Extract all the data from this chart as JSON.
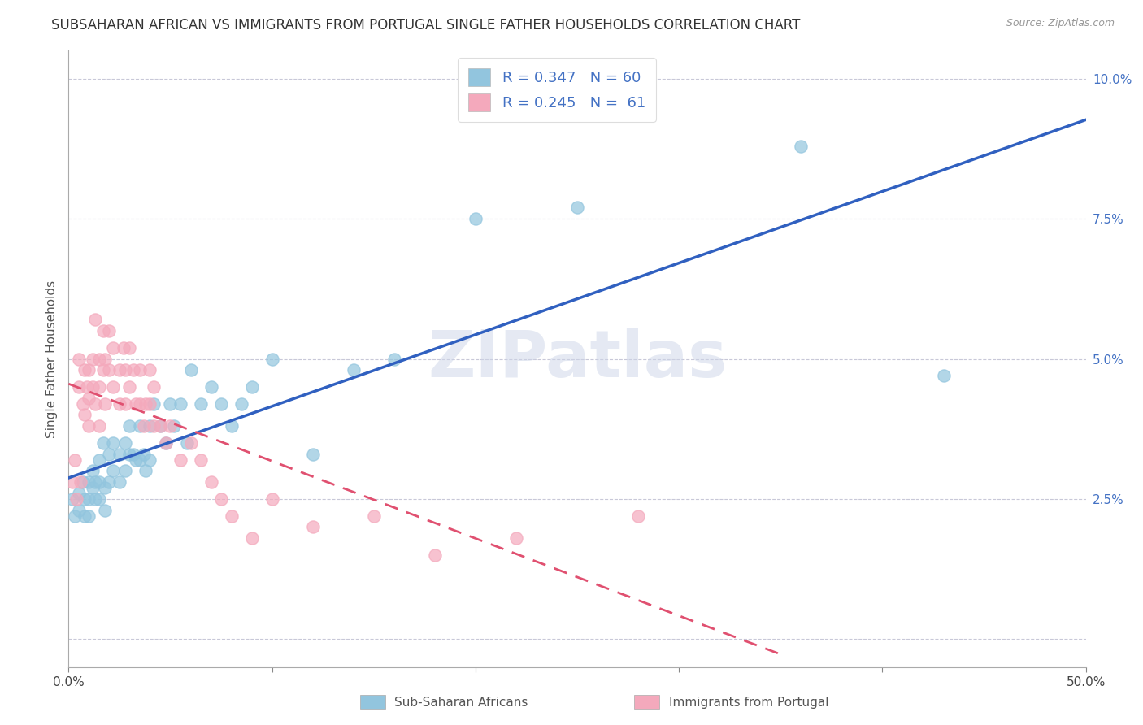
{
  "title": "SUBSAHARAN AFRICAN VS IMMIGRANTS FROM PORTUGAL SINGLE FATHER HOUSEHOLDS CORRELATION CHART",
  "source": "Source: ZipAtlas.com",
  "ylabel": "Single Father Households",
  "xlim": [
    0,
    0.5
  ],
  "ylim": [
    -0.005,
    0.105
  ],
  "xticks": [
    0.0,
    0.1,
    0.2,
    0.3,
    0.4,
    0.5
  ],
  "yticks": [
    0.0,
    0.025,
    0.05,
    0.075,
    0.1
  ],
  "xtick_labels_show": [
    "0.0%",
    "",
    "",
    "",
    "",
    "50.0%"
  ],
  "ytick_labels_show": [
    "",
    "2.5%",
    "5.0%",
    "7.5%",
    "10.0%"
  ],
  "watermark": "ZIPatlas",
  "blue_R": 0.347,
  "blue_N": 60,
  "pink_R": 0.245,
  "pink_N": 61,
  "blue_color": "#92c5de",
  "pink_color": "#f4a9bc",
  "blue_line_color": "#3060c0",
  "pink_line_color": "#e05070",
  "legend_label_blue": "Sub-Saharan Africans",
  "legend_label_pink": "Immigrants from Portugal",
  "blue_scatter_x": [
    0.002,
    0.003,
    0.005,
    0.005,
    0.007,
    0.008,
    0.008,
    0.01,
    0.01,
    0.01,
    0.012,
    0.012,
    0.013,
    0.013,
    0.015,
    0.015,
    0.015,
    0.017,
    0.018,
    0.018,
    0.02,
    0.02,
    0.022,
    0.022,
    0.025,
    0.025,
    0.028,
    0.028,
    0.03,
    0.03,
    0.032,
    0.033,
    0.035,
    0.035,
    0.037,
    0.038,
    0.04,
    0.04,
    0.042,
    0.045,
    0.048,
    0.05,
    0.052,
    0.055,
    0.058,
    0.06,
    0.065,
    0.07,
    0.075,
    0.08,
    0.085,
    0.09,
    0.1,
    0.12,
    0.14,
    0.16,
    0.2,
    0.25,
    0.36,
    0.43
  ],
  "blue_scatter_y": [
    0.025,
    0.022,
    0.026,
    0.023,
    0.028,
    0.025,
    0.022,
    0.028,
    0.025,
    0.022,
    0.03,
    0.027,
    0.025,
    0.028,
    0.032,
    0.028,
    0.025,
    0.035,
    0.027,
    0.023,
    0.033,
    0.028,
    0.035,
    0.03,
    0.033,
    0.028,
    0.035,
    0.03,
    0.038,
    0.033,
    0.033,
    0.032,
    0.038,
    0.032,
    0.033,
    0.03,
    0.038,
    0.032,
    0.042,
    0.038,
    0.035,
    0.042,
    0.038,
    0.042,
    0.035,
    0.048,
    0.042,
    0.045,
    0.042,
    0.038,
    0.042,
    0.045,
    0.05,
    0.033,
    0.048,
    0.05,
    0.075,
    0.077,
    0.088,
    0.047
  ],
  "pink_scatter_x": [
    0.002,
    0.003,
    0.004,
    0.005,
    0.005,
    0.006,
    0.007,
    0.008,
    0.008,
    0.009,
    0.01,
    0.01,
    0.01,
    0.012,
    0.012,
    0.013,
    0.013,
    0.015,
    0.015,
    0.015,
    0.017,
    0.017,
    0.018,
    0.018,
    0.02,
    0.02,
    0.022,
    0.022,
    0.025,
    0.025,
    0.027,
    0.028,
    0.028,
    0.03,
    0.03,
    0.032,
    0.033,
    0.035,
    0.035,
    0.037,
    0.038,
    0.04,
    0.04,
    0.042,
    0.042,
    0.045,
    0.048,
    0.05,
    0.055,
    0.06,
    0.065,
    0.07,
    0.075,
    0.08,
    0.09,
    0.1,
    0.12,
    0.15,
    0.18,
    0.22,
    0.28
  ],
  "pink_scatter_y": [
    0.028,
    0.032,
    0.025,
    0.05,
    0.045,
    0.028,
    0.042,
    0.048,
    0.04,
    0.045,
    0.048,
    0.043,
    0.038,
    0.05,
    0.045,
    0.057,
    0.042,
    0.05,
    0.045,
    0.038,
    0.055,
    0.048,
    0.05,
    0.042,
    0.055,
    0.048,
    0.052,
    0.045,
    0.048,
    0.042,
    0.052,
    0.048,
    0.042,
    0.052,
    0.045,
    0.048,
    0.042,
    0.048,
    0.042,
    0.038,
    0.042,
    0.048,
    0.042,
    0.045,
    0.038,
    0.038,
    0.035,
    0.038,
    0.032,
    0.035,
    0.032,
    0.028,
    0.025,
    0.022,
    0.018,
    0.025,
    0.02,
    0.022,
    0.015,
    0.018,
    0.022
  ],
  "background_color": "#ffffff",
  "grid_color": "#c8c8d8",
  "title_fontsize": 12,
  "axis_label_fontsize": 11,
  "tick_fontsize": 11
}
